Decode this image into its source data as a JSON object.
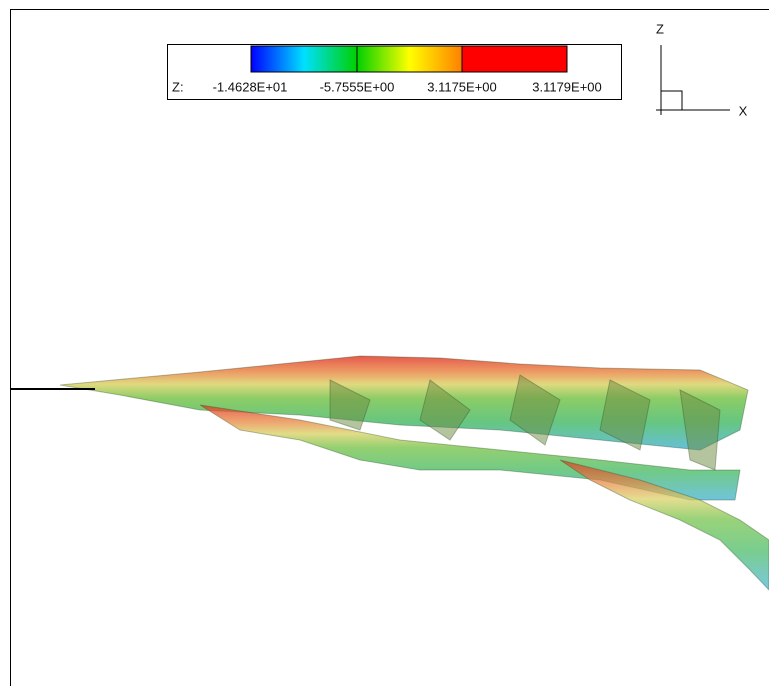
{
  "legend": {
    "label": "Z:",
    "ticks": [
      "-1.4628E+01",
      "-5.7555E+00",
      "3.1175E+00",
      "3.1179E+00"
    ]
  },
  "axes": {
    "vertical": "Z",
    "horizontal": "X"
  }
}
